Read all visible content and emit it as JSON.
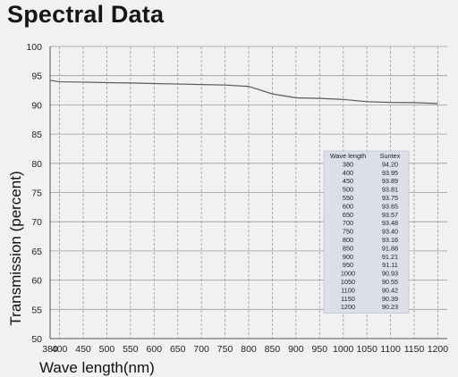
{
  "chart_data": {
    "type": "line",
    "title": "Spectral Data",
    "xlabel": "Wave length(nm)",
    "ylabel": "Transmission (percent)",
    "xlim": [
      380,
      1220
    ],
    "ylim": [
      50,
      100
    ],
    "x_ticks": [
      380,
      400,
      450,
      500,
      550,
      600,
      650,
      700,
      750,
      800,
      850,
      900,
      950,
      1000,
      1050,
      1100,
      1150,
      1200
    ],
    "y_ticks": [
      50,
      55,
      60,
      65,
      70,
      75,
      80,
      85,
      90,
      95,
      100
    ],
    "grid": true,
    "series": [
      {
        "name": "Suntex",
        "x": [
          380,
          400,
          450,
          500,
          550,
          600,
          650,
          700,
          750,
          800,
          850,
          900,
          950,
          1000,
          1050,
          1100,
          1150,
          1200
        ],
        "values": [
          94.2,
          93.95,
          93.89,
          93.81,
          93.75,
          93.65,
          93.57,
          93.48,
          93.4,
          93.16,
          91.88,
          91.21,
          91.11,
          90.93,
          90.55,
          90.42,
          90.39,
          90.23
        ]
      }
    ],
    "table": {
      "headers": [
        "Wave length",
        "Suntex"
      ],
      "rows": [
        [
          "380",
          "94.20"
        ],
        [
          "400",
          "93.95"
        ],
        [
          "450",
          "93.89"
        ],
        [
          "500",
          "93.81"
        ],
        [
          "550",
          "93.75"
        ],
        [
          "600",
          "93.65"
        ],
        [
          "650",
          "93.57"
        ],
        [
          "700",
          "93.48"
        ],
        [
          "750",
          "93.40"
        ],
        [
          "800",
          "93.16"
        ],
        [
          "850",
          "91.88"
        ],
        [
          "900",
          "91.21"
        ],
        [
          "950",
          "91.11"
        ],
        [
          "1000",
          "90.93"
        ],
        [
          "1050",
          "90.55"
        ],
        [
          "1100",
          "90.42"
        ],
        [
          "1150",
          "90.39"
        ],
        [
          "1200",
          "90.23"
        ]
      ]
    },
    "colors": {
      "line": "#5a5a5a",
      "grid": "#9a9a9a",
      "table_bg": "#dcdfe8"
    }
  }
}
